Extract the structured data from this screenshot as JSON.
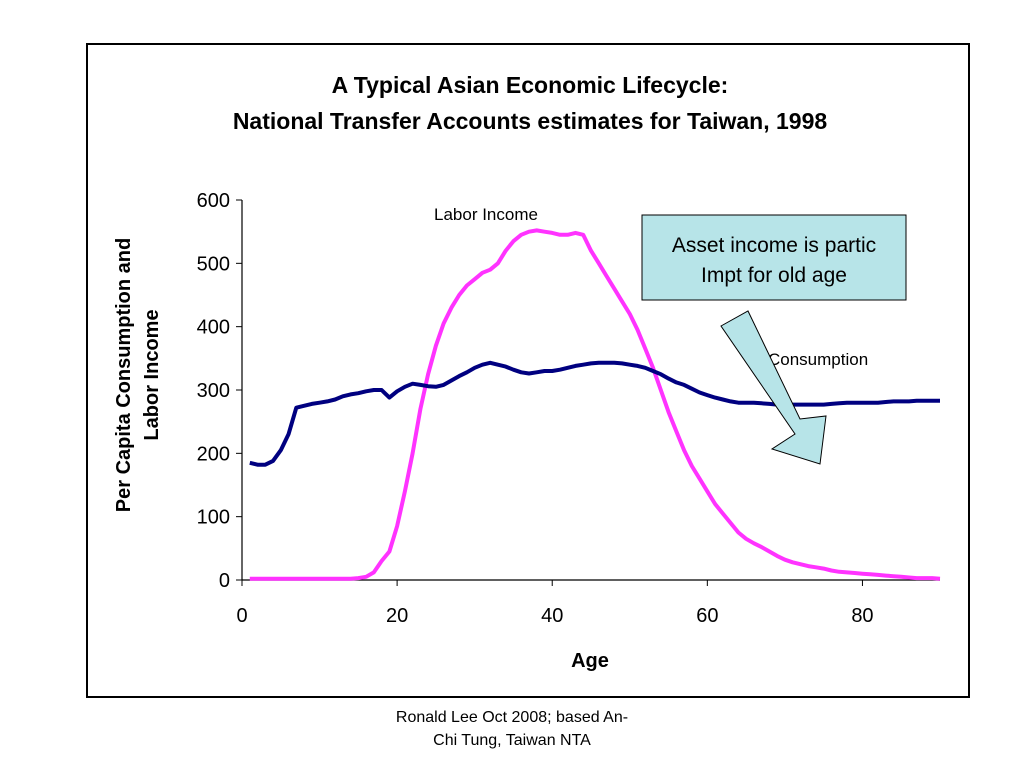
{
  "chart_data": {
    "type": "line",
    "title_lines": [
      "A Typical Asian Economic Lifecycle:",
      "National Transfer Accounts estimates for Taiwan, 1998"
    ],
    "xlabel": "Age",
    "ylabel_lines": [
      "Per Capita Consumption and",
      "Labor Income"
    ],
    "xlim": [
      0,
      90
    ],
    "ylim": [
      0,
      600
    ],
    "xticks": [
      0,
      20,
      40,
      60,
      80
    ],
    "yticks": [
      0,
      100,
      200,
      300,
      400,
      500,
      600
    ],
    "grid": false,
    "series": [
      {
        "name": "Labor Income",
        "color": "#ff33ff",
        "x": [
          1,
          5,
          10,
          14,
          15,
          16,
          17,
          18,
          19,
          20,
          21,
          22,
          23,
          24,
          25,
          26,
          27,
          28,
          29,
          30,
          31,
          32,
          33,
          34,
          35,
          36,
          37,
          38,
          39,
          40,
          41,
          42,
          43,
          44,
          45,
          46,
          47,
          48,
          49,
          50,
          51,
          52,
          53,
          54,
          55,
          56,
          57,
          58,
          59,
          60,
          61,
          62,
          63,
          64,
          65,
          66,
          67,
          68,
          69,
          70,
          71,
          72,
          73,
          74,
          75,
          76,
          77,
          78,
          79,
          80,
          81,
          82,
          83,
          84,
          85,
          86,
          87,
          88,
          89,
          90
        ],
        "y": [
          2,
          2,
          2,
          2,
          3,
          5,
          12,
          30,
          45,
          85,
          140,
          200,
          270,
          325,
          370,
          405,
          430,
          450,
          465,
          475,
          485,
          490,
          500,
          520,
          535,
          545,
          550,
          552,
          550,
          548,
          545,
          545,
          548,
          545,
          520,
          500,
          480,
          460,
          440,
          420,
          395,
          365,
          335,
          300,
          265,
          235,
          205,
          180,
          160,
          140,
          120,
          105,
          90,
          75,
          65,
          58,
          52,
          45,
          38,
          32,
          28,
          25,
          22,
          20,
          18,
          15,
          13,
          12,
          11,
          10,
          9,
          8,
          7,
          6,
          5,
          4,
          3,
          3,
          3,
          2
        ]
      },
      {
        "name": "Consumption",
        "color": "#000080",
        "x": [
          1,
          2,
          3,
          4,
          5,
          6,
          7,
          8,
          9,
          10,
          11,
          12,
          13,
          14,
          15,
          16,
          17,
          18,
          19,
          20,
          21,
          22,
          23,
          24,
          25,
          26,
          27,
          28,
          29,
          30,
          31,
          32,
          33,
          34,
          35,
          36,
          37,
          38,
          39,
          40,
          41,
          42,
          43,
          44,
          45,
          46,
          47,
          48,
          49,
          50,
          51,
          52,
          53,
          54,
          55,
          56,
          57,
          58,
          59,
          60,
          61,
          62,
          63,
          64,
          65,
          66,
          67,
          68,
          69,
          70,
          71,
          72,
          73,
          74,
          75,
          76,
          77,
          78,
          79,
          80,
          81,
          82,
          83,
          84,
          85,
          86,
          87,
          88,
          89,
          90
        ],
        "y": [
          185,
          182,
          182,
          188,
          205,
          230,
          272,
          275,
          278,
          280,
          282,
          285,
          290,
          293,
          295,
          298,
          300,
          300,
          288,
          298,
          305,
          310,
          308,
          306,
          305,
          308,
          315,
          322,
          328,
          335,
          340,
          343,
          340,
          337,
          332,
          328,
          326,
          328,
          330,
          330,
          332,
          335,
          338,
          340,
          342,
          343,
          343,
          343,
          342,
          340,
          338,
          335,
          330,
          325,
          318,
          312,
          308,
          302,
          296,
          292,
          288,
          285,
          282,
          280,
          280,
          280,
          279,
          278,
          277,
          277,
          277,
          277,
          277,
          277,
          277,
          278,
          279,
          280,
          280,
          280,
          280,
          280,
          281,
          282,
          282,
          282,
          283,
          283,
          283,
          283
        ]
      }
    ],
    "series_labels": [
      "Labor Income",
      "Consumption"
    ],
    "annotation": {
      "lines": [
        "Asset income is partic",
        "Impt for old age"
      ],
      "box_fill": "#b7e4e8",
      "arrow_fill": "#b7e4e8"
    }
  },
  "footer_lines": [
    "Ronald Lee Oct 2008; based An-",
    "Chi Tung, Taiwan NTA"
  ]
}
